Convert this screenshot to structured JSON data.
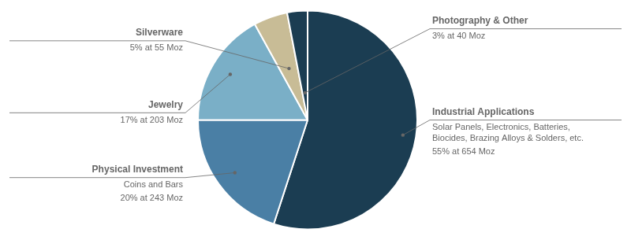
{
  "chart_data": {
    "type": "pie",
    "categories": [
      "Industrial Applications",
      "Physical Investment",
      "Jewelry",
      "Silverware",
      "Photography & Other"
    ],
    "values": [
      55,
      20,
      17,
      5,
      3
    ],
    "value_labels": [
      "55% at 654 Moz",
      "20% at 243 Moz",
      "17% at 203 Moz",
      "5% at 55 Moz",
      "3% at 40 Moz"
    ],
    "colors": [
      "#1b3d52",
      "#4a7fa5",
      "#7aafc7",
      "#c8bc96",
      "#1b3d52"
    ],
    "annotations": [
      {
        "category": "Industrial Applications",
        "text": [
          "Solar Panels, Electronics, Batteries,",
          "Biocides, Brazing Alloys & Solders, etc."
        ]
      },
      {
        "category": "Physical Investment",
        "text": [
          "Coins and Bars"
        ]
      }
    ]
  }
}
